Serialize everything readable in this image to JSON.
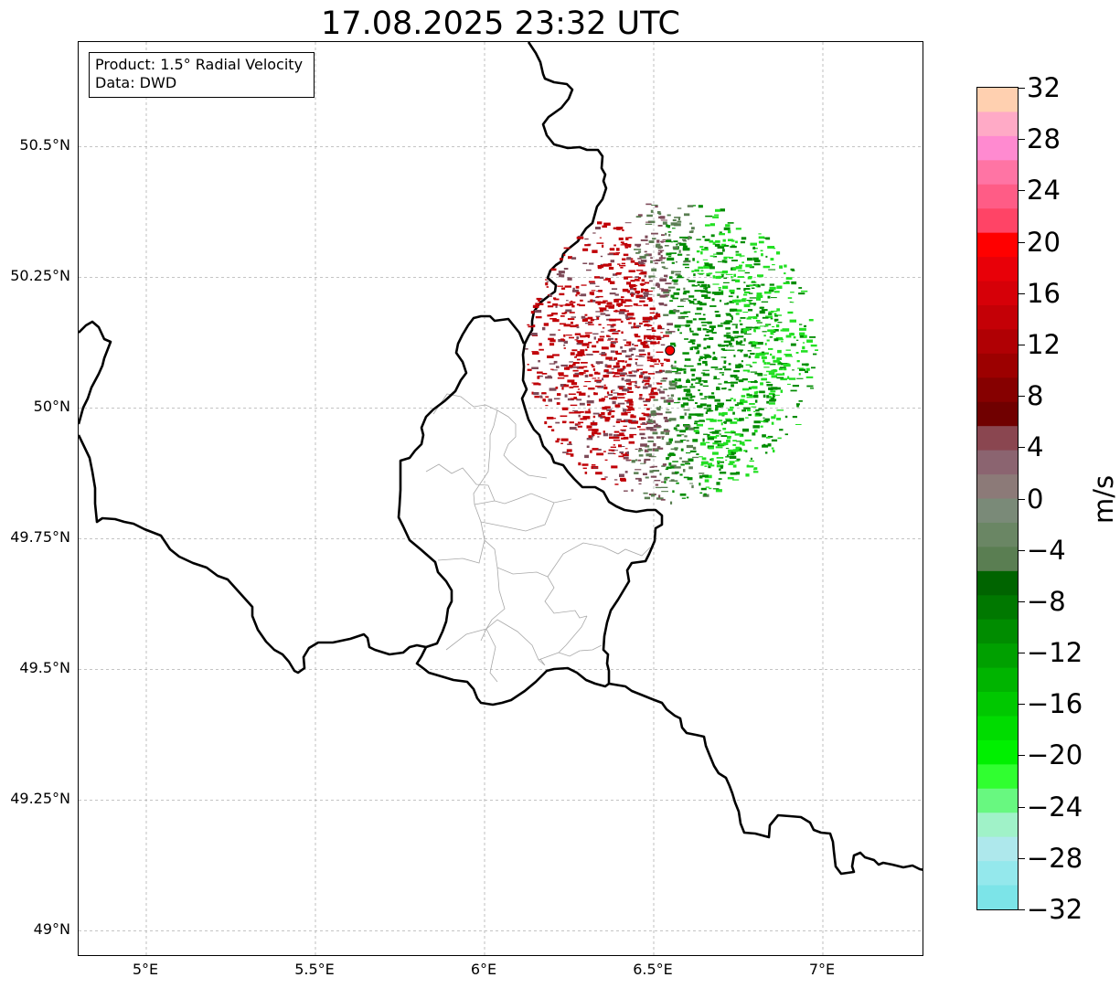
{
  "title": "17.08.2025 23:32 UTC",
  "info": {
    "product": "Product: 1.5° Radial Velocity",
    "source": "Data: DWD"
  },
  "extent": {
    "lon_min": 4.8,
    "lon_max": 7.3,
    "lat_min": 48.95,
    "lat_max": 50.7
  },
  "lat_ticks": [
    {
      "value": 50.5,
      "label": "50.5°N"
    },
    {
      "value": 50.25,
      "label": "50.25°N"
    },
    {
      "value": 50.0,
      "label": "50°N"
    },
    {
      "value": 49.75,
      "label": "49.75°N"
    },
    {
      "value": 49.5,
      "label": "49.5°N"
    },
    {
      "value": 49.25,
      "label": "49.25°N"
    },
    {
      "value": 49.0,
      "label": "49°N"
    }
  ],
  "lon_ticks": [
    {
      "value": 5.0,
      "label": "5°E"
    },
    {
      "value": 5.5,
      "label": "5.5°E"
    },
    {
      "value": 6.0,
      "label": "6°E"
    },
    {
      "value": 6.5,
      "label": "6.5°E"
    },
    {
      "value": 7.0,
      "label": "7°E"
    }
  ],
  "radar_site": {
    "lon": 6.548,
    "lat": 50.11,
    "color": "#ff0000"
  },
  "colorbar": {
    "unit": "m/s",
    "min": -32,
    "max": 32,
    "tick_labels": [
      "32",
      "28",
      "24",
      "20",
      "16",
      "12",
      "8",
      "4",
      "0",
      "−4",
      "−8",
      "−12",
      "−16",
      "−20",
      "−24",
      "−28",
      "−32"
    ],
    "tick_values": [
      32,
      28,
      24,
      20,
      16,
      12,
      8,
      4,
      0,
      -4,
      -8,
      -12,
      -16,
      -20,
      -24,
      -28,
      -32
    ],
    "colors_top_to_bottom": [
      "#ffd0b0",
      "#ffaac6",
      "#ff8ad0",
      "#ff74a4",
      "#ff5c86",
      "#ff4466",
      "#ff0000",
      "#e80008",
      "#d60008",
      "#c40006",
      "#b00004",
      "#9c0000",
      "#860000",
      "#700000",
      "#8a4650",
      "#8b6470",
      "#8c7a78",
      "#7a8a78",
      "#6a8664",
      "#5a7e52",
      "#006400",
      "#007800",
      "#008c00",
      "#00a000",
      "#00b400",
      "#00c800",
      "#00dc00",
      "#00f000",
      "#30ff30",
      "#68f880",
      "#a0f2c8",
      "#aee8ec",
      "#94e8ec",
      "#7ce4e8"
    ]
  },
  "velocity_colors": {
    "outbound_strong": "#c00006",
    "outbound_weak": "#7d4a58",
    "inbound_weak": "#5a7e52",
    "inbound_strong": "#008c00",
    "inbound_fast": "#22e022"
  }
}
